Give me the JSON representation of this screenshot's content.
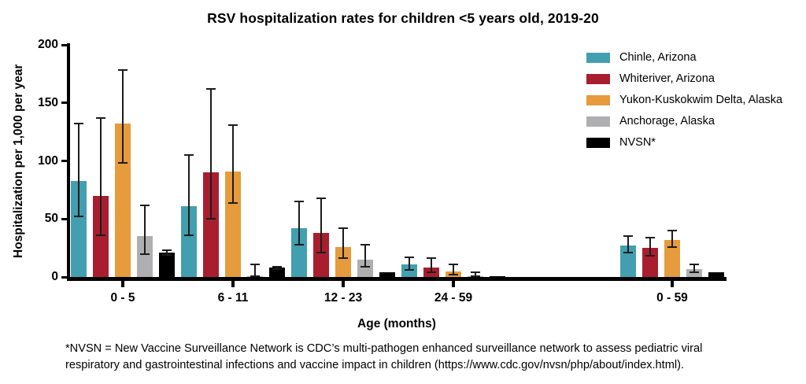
{
  "title": "RSV hospitalization rates for children <5 years old, 2019-20",
  "footnote": {
    "lines": [
      "*NVSN = New Vaccine Surveillance Network is CDC’s multi-pathogen enhanced surveillance network to assess pediatric viral",
      "respiratory and gastrointestinal infections and vaccine impact in children (https://www.cdc.gov/nvsn/php/about/index.html)."
    ]
  },
  "chart_data": {
    "type": "bar",
    "title": "RSV hospitalization rates for children <5 years old, 2019-20",
    "xlabel": "Age (months)",
    "ylabel": "Hospitalization per 1,000 per year",
    "ylim": [
      0,
      200
    ],
    "yticks": [
      0,
      50,
      100,
      150,
      200
    ],
    "grid": false,
    "legend_position": "top-right",
    "error_bars": true,
    "categories": [
      "0 - 5",
      "6 - 11",
      "12 - 23",
      "24 - 59",
      "0 - 59"
    ],
    "series": [
      {
        "name": "Chinle, Arizona",
        "color": "#429FB0",
        "values": [
          83,
          61,
          42,
          11,
          27
        ],
        "error_low": [
          52,
          36,
          28,
          6,
          21
        ],
        "error_high": [
          132,
          105,
          65,
          17,
          35
        ]
      },
      {
        "name": "Whiteriver, Arizona",
        "color": "#A81E2F",
        "values": [
          70,
          90,
          38,
          8,
          25
        ],
        "error_low": [
          36,
          50,
          21,
          4,
          18
        ],
        "error_high": [
          137,
          162,
          68,
          16,
          34
        ]
      },
      {
        "name": "Yukon-Kuskokwim Delta, Alaska",
        "color": "#E69B3C",
        "values": [
          132,
          91,
          26,
          5,
          32
        ],
        "error_low": [
          98,
          64,
          16,
          2,
          26
        ],
        "error_high": [
          178,
          131,
          42,
          11,
          40
        ]
      },
      {
        "name": "Anchorage, Alaska",
        "color": "#AFAFB1",
        "values": [
          35,
          0.5,
          15,
          0.5,
          7
        ],
        "error_low": [
          20,
          1,
          9,
          0.5,
          4
        ],
        "error_high": [
          62,
          11,
          28,
          4,
          11
        ]
      },
      {
        "name": "NVSN*",
        "color": "#000000",
        "values": [
          21,
          8,
          4,
          1,
          4
        ],
        "error_low": [
          19,
          7,
          4,
          1,
          4
        ],
        "error_high": [
          23,
          9,
          4,
          1,
          4
        ]
      }
    ]
  }
}
